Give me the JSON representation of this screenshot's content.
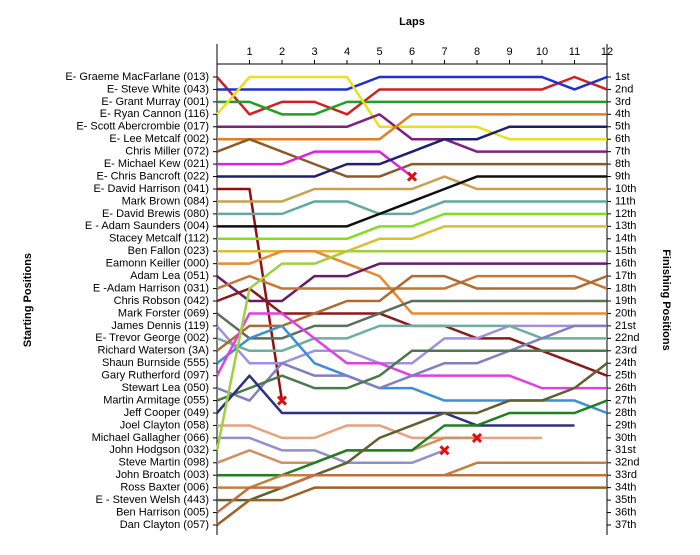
{
  "chart_data": {
    "type": "lap",
    "title": "Laps",
    "y_label": "Starting Positions",
    "y2_label": "Finishing Positions",
    "x": [
      0,
      1,
      2,
      3,
      4,
      5,
      6,
      7,
      8,
      9,
      10,
      11,
      12
    ],
    "xlim": [
      0,
      12
    ],
    "xticks": [
      1,
      2,
      3,
      4,
      5,
      6,
      7,
      8,
      9,
      10,
      11,
      12
    ],
    "ylim": [
      1,
      37
    ],
    "finishing_labels": [
      "1st",
      "2nd",
      "3rd",
      "4th",
      "5th",
      "6th",
      "7th",
      "8th",
      "9th",
      "10th",
      "11th",
      "12th",
      "13th",
      "14th",
      "15th",
      "16th",
      "17th",
      "18th",
      "19th",
      "20th",
      "21st",
      "22nd",
      "23rd",
      "24th",
      "25th",
      "26th",
      "27th",
      "28th",
      "29th",
      "30th",
      "31st",
      "32nd",
      "33rd",
      "34th",
      "35th",
      "36th",
      "37th"
    ],
    "series": [
      {
        "name": "E- Graeme MacFarlane (013)",
        "color": "#d02020",
        "values": [
          1,
          4,
          3,
          3,
          4,
          2,
          2,
          2,
          2,
          2,
          2,
          1,
          2
        ]
      },
      {
        "name": "E- Steve White (043)",
        "color": "#2030d0",
        "values": [
          2,
          2,
          2,
          2,
          2,
          1,
          1,
          1,
          1,
          1,
          1,
          2,
          1
        ]
      },
      {
        "name": "E- Grant Murray (001)",
        "color": "#20a020",
        "values": [
          3,
          3,
          4,
          4,
          3,
          3,
          3,
          3,
          3,
          3,
          3,
          3,
          3
        ]
      },
      {
        "name": "E- Ryan Cannon (116)",
        "color": "#e8e020",
        "values": [
          4,
          1,
          1,
          1,
          1,
          5,
          5,
          5,
          5,
          6,
          6,
          6,
          6
        ]
      },
      {
        "name": "E- Scott Abercrombie (017)",
        "color": "#802080",
        "values": [
          5,
          5,
          5,
          5,
          5,
          4,
          6,
          6,
          7,
          7,
          7,
          7,
          7
        ]
      },
      {
        "name": "E- Lee Metcalf (002)",
        "color": "#e08020",
        "values": [
          6,
          6,
          6,
          6,
          6,
          6,
          4,
          4,
          4,
          4,
          4,
          4,
          4
        ]
      },
      {
        "name": "Chris Miller (072)",
        "color": "#8b5a2b",
        "values": [
          7,
          6,
          7,
          8,
          9,
          9,
          8,
          8,
          8,
          8,
          8,
          8,
          8
        ]
      },
      {
        "name": "E- Michael Kew (021)",
        "color": "#e020e0",
        "marker": "x",
        "values": [
          8,
          8,
          8,
          7,
          7,
          7,
          9,
          null,
          null,
          null,
          null,
          null,
          null
        ]
      },
      {
        "name": "E- Chris Bancroft (022)",
        "color": "#202070",
        "values": [
          9,
          9,
          9,
          9,
          8,
          8,
          7,
          6,
          6,
          5,
          5,
          5,
          5
        ]
      },
      {
        "name": "E- David Harrison (041)",
        "color": "#901010",
        "marker": "x",
        "values": [
          10,
          10,
          27,
          null,
          null,
          null,
          null,
          null,
          null,
          null,
          null,
          null,
          null
        ]
      },
      {
        "name": "Mark Brown (084)",
        "color": "#c8a050",
        "values": [
          11,
          11,
          11,
          10,
          10,
          10,
          10,
          9,
          10,
          10,
          10,
          10,
          10
        ]
      },
      {
        "name": "E- David Brewis (080)",
        "color": "#60a8a0",
        "values": [
          12,
          12,
          12,
          11,
          11,
          12,
          12,
          11,
          11,
          11,
          11,
          11,
          11
        ]
      },
      {
        "name": "E - Adam Saunders (004)",
        "color": "#101010",
        "values": [
          13,
          13,
          13,
          13,
          13,
          12,
          11,
          10,
          9,
          9,
          9,
          9,
          9
        ]
      },
      {
        "name": "Stacey Metcalf (112)",
        "color": "#80e020",
        "values": [
          14,
          14,
          14,
          14,
          14,
          13,
          13,
          12,
          12,
          12,
          12,
          12,
          12
        ]
      },
      {
        "name": "Ben Fallon (023)",
        "color": "#d8c030",
        "values": [
          15,
          15,
          15,
          15,
          15,
          14,
          14,
          13,
          13,
          13,
          13,
          13,
          13
        ]
      },
      {
        "name": "Eamonn Keiller (000)",
        "color": "#e88a30",
        "values": [
          16,
          16,
          15,
          15,
          16,
          17,
          20,
          20,
          20,
          20,
          20,
          20,
          20
        ]
      },
      {
        "name": "Adam Lea (051)",
        "color": "#6a1a6a",
        "values": [
          17,
          19,
          19,
          17,
          17,
          16,
          16,
          16,
          16,
          16,
          16,
          16,
          16
        ]
      },
      {
        "name": "E -Adam Harrison (031)",
        "color": "#c87533",
        "values": [
          18,
          17,
          18,
          18,
          18,
          18,
          18,
          18,
          17,
          17,
          17,
          17,
          18
        ]
      },
      {
        "name": "Chris Robson (042)",
        "color": "#8b1a1a",
        "values": [
          19,
          18,
          20,
          20,
          20,
          20,
          21,
          21,
          22,
          22,
          23,
          24,
          25
        ]
      },
      {
        "name": "Mark Forster (069)",
        "color": "#5a6e5a",
        "values": [
          20,
          22,
          22,
          21,
          21,
          20,
          19,
          19,
          19,
          19,
          19,
          19,
          19
        ]
      },
      {
        "name": "James Dennis (119)",
        "color": "#a090e0",
        "values": [
          21,
          24,
          24,
          23,
          23,
          24,
          24,
          22,
          22,
          21,
          21,
          21,
          21
        ]
      },
      {
        "name": "E- Trevor George (002)",
        "color": "#6ab0a0",
        "values": [
          22,
          23,
          23,
          22,
          22,
          21,
          21,
          21,
          21,
          21,
          22,
          22,
          22
        ]
      },
      {
        "name": "Richard Waterson (3A)",
        "color": "#b06a30",
        "values": [
          23,
          21,
          21,
          20,
          19,
          19,
          17,
          17,
          18,
          18,
          18,
          18,
          17
        ]
      },
      {
        "name": "Shaun Burnside (555)",
        "color": "#3b8fd6",
        "values": [
          24,
          22,
          21,
          24,
          25,
          26,
          26,
          27,
          27,
          27,
          27,
          27,
          28
        ]
      },
      {
        "name": "Gary Rutherford (097)",
        "color": "#e040e0",
        "values": [
          25,
          20,
          20,
          22,
          24,
          24,
          25,
          25,
          25,
          25,
          26,
          26,
          26
        ]
      },
      {
        "name": "Stewart Lea (050)",
        "color": "#8080c0",
        "values": [
          26,
          27,
          24,
          25,
          25,
          26,
          25,
          24,
          24,
          23,
          22,
          21,
          21
        ]
      },
      {
        "name": "Martin Armitage (055)",
        "color": "#4a7a4a",
        "values": [
          27,
          26,
          25,
          26,
          26,
          25,
          23,
          23,
          23,
          23,
          23,
          23,
          23
        ]
      },
      {
        "name": "Jeff Cooper (049)",
        "color": "#303080",
        "values": [
          28,
          25,
          28,
          28,
          28,
          28,
          28,
          28,
          29,
          29,
          29,
          29,
          null
        ]
      },
      {
        "name": "Joel Clayton (058)",
        "color": "#e8a080",
        "values": [
          29,
          29,
          30,
          30,
          29,
          29,
          30,
          30,
          30,
          30,
          30,
          null,
          null
        ]
      },
      {
        "name": "Michael Gallagher (066)",
        "color": "#9090d0",
        "marker": "x",
        "values": [
          30,
          30,
          31,
          31,
          32,
          32,
          32,
          31,
          null,
          null,
          null,
          null,
          null
        ]
      },
      {
        "name": "John Hodgson (032)",
        "color": "#a0d040",
        "values": [
          31,
          18,
          16,
          16,
          15,
          15,
          15,
          15,
          15,
          15,
          15,
          15,
          15
        ]
      },
      {
        "name": "Steve Martin (098)",
        "color": "#d09060",
        "marker": "x",
        "values": [
          32,
          31,
          32,
          32,
          31,
          31,
          31,
          30,
          30,
          null,
          null,
          null,
          null
        ]
      },
      {
        "name": "John Broatch (003)",
        "color": "#208020",
        "values": [
          33,
          33,
          33,
          32,
          31,
          31,
          31,
          29,
          29,
          28,
          28,
          28,
          27
        ]
      },
      {
        "name": "Ross Baxter (006)",
        "color": "#c08040",
        "values": [
          34,
          34,
          33,
          33,
          33,
          33,
          33,
          33,
          32,
          32,
          32,
          32,
          32
        ]
      },
      {
        "name": "E - Steven Welsh (443)",
        "color": "#606030",
        "values": [
          35,
          35,
          34,
          33,
          32,
          30,
          29,
          28,
          28,
          27,
          27,
          26,
          24
        ]
      },
      {
        "name": "Ben Harrison (005)",
        "color": "#c07040",
        "values": [
          36,
          34,
          34,
          33,
          33,
          33,
          33,
          33,
          33,
          33,
          33,
          33,
          33
        ]
      },
      {
        "name": "Dan Clayton (057)",
        "color": "#a06020",
        "values": [
          37,
          35,
          35,
          34,
          34,
          34,
          34,
          34,
          34,
          34,
          34,
          34,
          34
        ]
      }
    ]
  }
}
